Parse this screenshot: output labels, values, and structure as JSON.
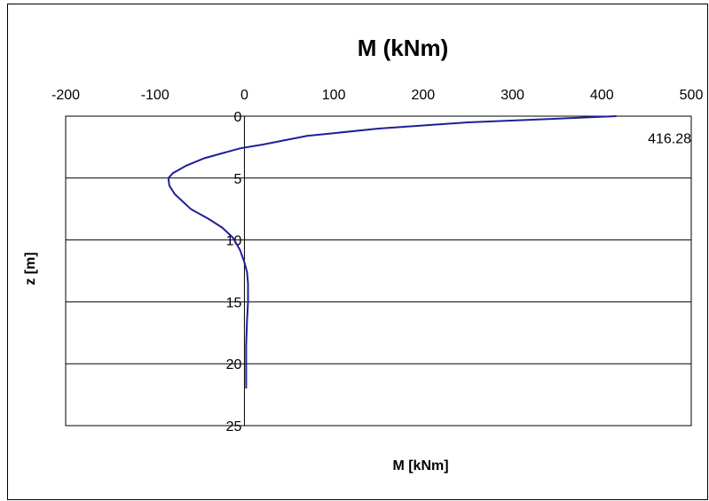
{
  "chart_data": {
    "type": "line",
    "title": "M (kNm)",
    "xlabel": "M [kNm]",
    "ylabel": "z [m]",
    "xlim": [
      -200,
      500
    ],
    "ylim": [
      0,
      25
    ],
    "x_ticks": [
      -200,
      -100,
      0,
      100,
      200,
      300,
      400,
      500
    ],
    "y_ticks": [
      0,
      5,
      10,
      15,
      20,
      25
    ],
    "y_inverted": true,
    "x_axis_position": "top",
    "grid": "horizontal",
    "line_color": "#1f1f99",
    "annotation": "416.28",
    "series": [
      {
        "x": [
          416.28,
          250,
          150,
          70,
          20,
          -5,
          -25,
          -45,
          -65,
          -80,
          -85,
          -84,
          -78,
          -60,
          -40,
          -25,
          -13,
          -5,
          0,
          3,
          4,
          4,
          3,
          2,
          2,
          2
        ],
        "y": [
          0,
          0.5,
          1.0,
          1.6,
          2.3,
          2.6,
          3.0,
          3.4,
          4.0,
          4.6,
          5.0,
          5.6,
          6.3,
          7.5,
          8.3,
          9.0,
          9.8,
          10.8,
          11.8,
          12.6,
          13.5,
          15.0,
          16.5,
          18.5,
          20.5,
          22.0
        ]
      }
    ]
  }
}
